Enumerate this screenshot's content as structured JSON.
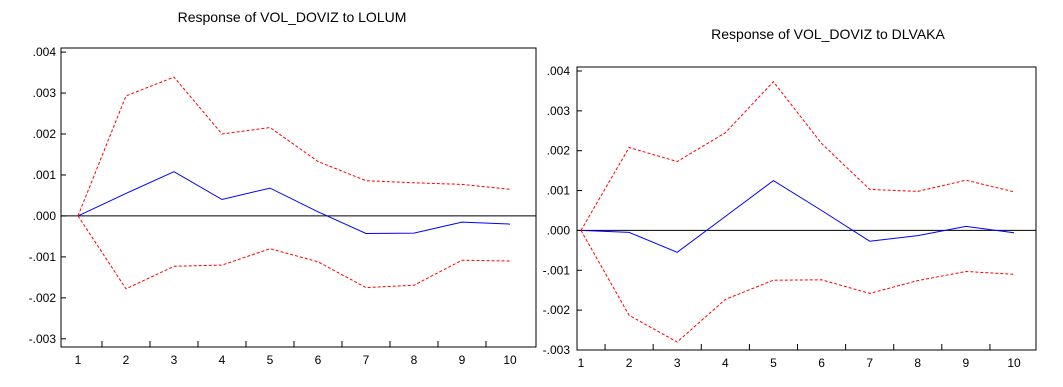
{
  "charts": [
    {
      "title": "Response of VOL_DOVIZ to LOLUM",
      "chart_data": {
        "type": "line",
        "title": "Response of VOL_DOVIZ to LOLUM",
        "x": [
          1,
          2,
          3,
          4,
          5,
          6,
          7,
          8,
          9,
          10
        ],
        "ylim": [
          -0.0032,
          0.0041
        ],
        "yticks": [
          ".004",
          ".003",
          ".002",
          ".001",
          ".000",
          "-.001",
          "-.002",
          "-.003"
        ],
        "ytick_values": [
          0.004,
          0.003,
          0.002,
          0.001,
          0.0,
          -0.001,
          -0.002,
          -0.003
        ],
        "xticks": [
          "1",
          "2",
          "3",
          "4",
          "5",
          "6",
          "7",
          "8",
          "9",
          "10"
        ],
        "grid": false,
        "zero_line": true,
        "series": [
          {
            "role": "response",
            "color": "#0000ff",
            "style": "solid",
            "values": [
              0.0,
              0.00055,
              0.00108,
              0.0004,
              0.00068,
              0.0001,
              -0.00043,
              -0.00042,
              -0.00015,
              -0.0002
            ]
          },
          {
            "role": "upper-band",
            "color": "#ff0000",
            "style": "dashed",
            "values": [
              0.0,
              0.00293,
              0.00339,
              0.002,
              0.00216,
              0.00133,
              0.00086,
              0.00081,
              0.00077,
              0.00065
            ]
          },
          {
            "role": "lower-band",
            "color": "#ff0000",
            "style": "dashed",
            "values": [
              0.0,
              -0.00178,
              -0.00123,
              -0.0012,
              -0.0008,
              -0.00112,
              -0.00175,
              -0.00169,
              -0.00108,
              -0.0011
            ]
          }
        ]
      }
    },
    {
      "title": "Response of VOL_DOVIZ to DLVAKA",
      "chart_data": {
        "type": "line",
        "title": "Response of VOL_DOVIZ to DLVAKA",
        "x": [
          1,
          2,
          3,
          4,
          5,
          6,
          7,
          8,
          9,
          10
        ],
        "ylim": [
          -0.003,
          0.0041
        ],
        "yticks": [
          ".004",
          ".003",
          ".002",
          ".001",
          ".000",
          "-.001",
          "-.002",
          "-.003"
        ],
        "ytick_values": [
          0.004,
          0.003,
          0.002,
          0.001,
          0.0,
          -0.001,
          -0.002,
          -0.003
        ],
        "xticks": [
          "1",
          "2",
          "3",
          "4",
          "5",
          "6",
          "7",
          "8",
          "9",
          "10"
        ],
        "grid": false,
        "zero_line": true,
        "series": [
          {
            "role": "response",
            "color": "#0000ff",
            "style": "solid",
            "values": [
              0.0,
              -5e-05,
              -0.00055,
              0.00035,
              0.00125,
              0.0005,
              -0.00027,
              -0.00013,
              0.0001,
              -6e-05
            ]
          },
          {
            "role": "upper-band",
            "color": "#ff0000",
            "style": "dashed",
            "values": [
              0.0,
              0.00208,
              0.00173,
              0.00245,
              0.00373,
              0.00218,
              0.00103,
              0.00098,
              0.00126,
              0.00097
            ]
          },
          {
            "role": "lower-band",
            "color": "#ff0000",
            "style": "dashed",
            "values": [
              0.0,
              -0.00213,
              -0.0028,
              -0.00173,
              -0.00125,
              -0.00124,
              -0.00158,
              -0.00126,
              -0.00103,
              -0.0011
            ]
          }
        ]
      }
    }
  ]
}
